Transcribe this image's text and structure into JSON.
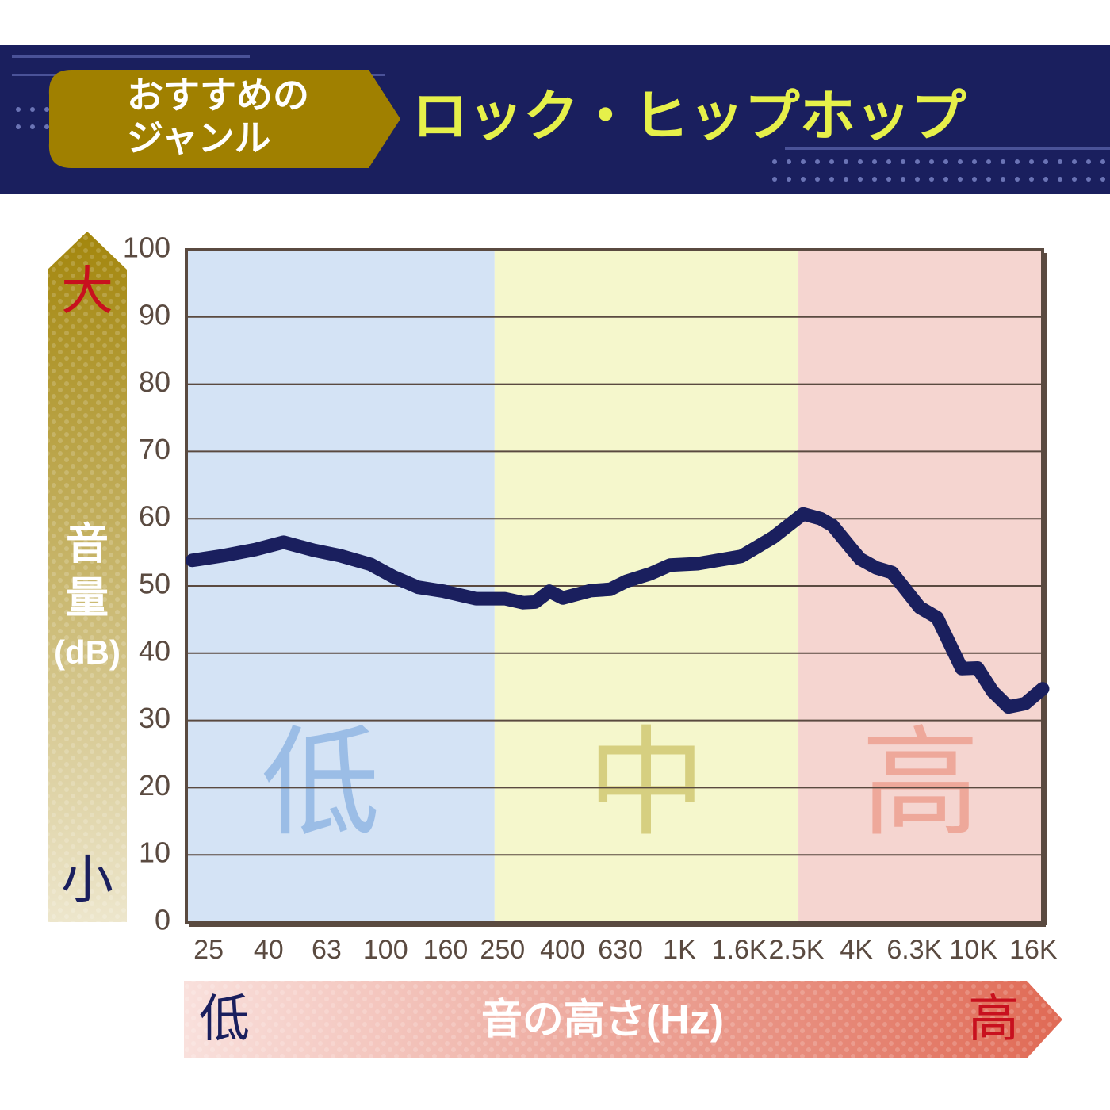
{
  "header": {
    "tag": [
      "おすすめの",
      "ジャンル"
    ],
    "title": "ロック・ヒップホップ"
  },
  "chart_data": {
    "type": "line",
    "y_label": "音量",
    "y_unit": "(dB)",
    "y_high": "大",
    "y_low": "小",
    "x_label": "音の高さ(Hz)",
    "x_low": "低",
    "x_high": "高",
    "xscale": "log",
    "xlim": [
      21,
      17200
    ],
    "xticks": [
      25,
      40,
      63,
      100,
      160,
      250,
      400,
      630,
      {
        "value": 1000,
        "label": "1K"
      },
      {
        "value": 1600,
        "label": "1.6K"
      },
      {
        "value": 2500,
        "label": "2.5K"
      },
      {
        "value": 4000,
        "label": "4K"
      },
      {
        "value": 6300,
        "label": "6.3K"
      },
      {
        "value": 10000,
        "label": "10K"
      },
      {
        "value": 16000,
        "label": "16K"
      }
    ],
    "ylim": [
      0,
      100
    ],
    "yticks": [
      0,
      10,
      20,
      30,
      40,
      50,
      60,
      70,
      80,
      90,
      100
    ],
    "grid": true,
    "bands": [
      {
        "label": "低",
        "from": 21,
        "to": 235,
        "color": "#d4e3f5",
        "label_color": "#9bbde6"
      },
      {
        "label": "中",
        "from": 235,
        "to": 2540,
        "color": "#f5f7cc",
        "label_color": "#d6cf80"
      },
      {
        "label": "高",
        "from": 2540,
        "to": 17200,
        "color": "#f5d5d0",
        "label_color": "#eea89a"
      }
    ],
    "color": "#1a1f5e",
    "x": [
      22,
      28,
      36,
      45,
      57,
      70,
      89,
      106,
      129,
      158,
      203,
      255,
      294,
      323,
      361,
      401,
      499,
      582,
      660,
      795,
      928,
      1153,
      1347,
      1623,
      1838,
      2081,
      2634,
      3021,
      3315,
      3873,
      4120,
      4666,
      5285,
      6567,
      7525,
      9127,
      10332,
      11630,
      13163,
      15000,
      17195
    ],
    "values": [
      53.8,
      54.5,
      55.4,
      56.5,
      55.3,
      54.5,
      53.2,
      51.4,
      49.8,
      49.2,
      48.1,
      48.1,
      47.5,
      47.6,
      49.2,
      48.2,
      49.3,
      49.5,
      50.7,
      51.8,
      53.1,
      53.3,
      53.8,
      54.4,
      55.8,
      57.2,
      60.7,
      60.0,
      59.0,
      55.4,
      54.0,
      52.7,
      52.0,
      46.8,
      45.3,
      37.7,
      37.8,
      34.3,
      32.0,
      32.5,
      34.7
    ]
  }
}
